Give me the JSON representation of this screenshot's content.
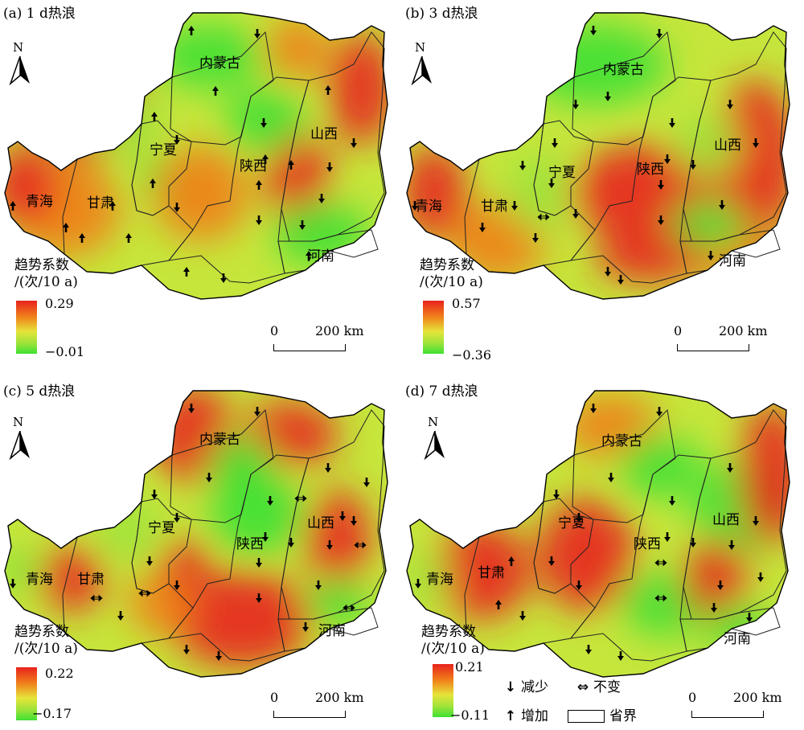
{
  "panels": [
    {
      "title": "(a) 1 d热浪",
      "legend_title_1": "趋势系数",
      "legend_title_2": "/(次/10 a)",
      "max": "0.29",
      "min": "−0.01",
      "blobs": [
        [
          "#e8221d",
          108,
          110,
          70,
          90
        ],
        [
          "#f07f1a",
          80,
          260,
          70,
          60
        ],
        [
          "#e8221d",
          30,
          230,
          40,
          50
        ],
        [
          "#3ee033",
          200,
          220,
          26,
          28
        ],
        [
          "#f07f1a",
          250,
          240,
          60,
          60
        ],
        [
          "#e8221d",
          370,
          220,
          40,
          60
        ],
        [
          "#3ee033",
          330,
          150,
          50,
          40
        ],
        [
          "#e8221d",
          450,
          110,
          40,
          70
        ],
        [
          "#f07f1a",
          370,
          60,
          40,
          40
        ],
        [
          "#3ee033",
          260,
          70,
          70,
          40
        ],
        [
          "#3ee033",
          400,
          290,
          60,
          40
        ],
        [
          "#9ee33a",
          150,
          150,
          50,
          40
        ]
      ],
      "arrows": [
        [
          "u",
          238,
          38
        ],
        [
          "d",
          320,
          42
        ],
        [
          "u",
          268,
          113
        ],
        [
          "u",
          408,
          112
        ],
        [
          "d",
          328,
          153
        ],
        [
          "u",
          192,
          145
        ],
        [
          "d",
          220,
          174
        ],
        [
          "d",
          440,
          178
        ],
        [
          "u",
          330,
          198
        ],
        [
          "u",
          362,
          205
        ],
        [
          "d",
          410,
          208
        ],
        [
          "u",
          190,
          228
        ],
        [
          "d",
          220,
          258
        ],
        [
          "u",
          140,
          256
        ],
        [
          "u",
          82,
          283
        ],
        [
          "u",
          102,
          296
        ],
        [
          "u",
          160,
          296
        ],
        [
          "u",
          16,
          256
        ],
        [
          "u",
          322,
          230
        ],
        [
          "d",
          322,
          274
        ],
        [
          "u",
          232,
          338
        ],
        [
          "d",
          278,
          346
        ],
        [
          "d",
          400,
          247
        ],
        [
          "d",
          376,
          280
        ],
        [
          "u",
          384,
          318
        ]
      ]
    },
    {
      "title": "(b) 3 d热浪",
      "legend_title_1": "趋势系数",
      "legend_title_2": "/(次/10 a)",
      "max": "0.57",
      "min": "−0.36",
      "blobs": [
        [
          "#e8221d",
          300,
          240,
          90,
          60
        ],
        [
          "#e8221d",
          440,
          200,
          50,
          100
        ],
        [
          "#e8221d",
          40,
          240,
          40,
          60
        ],
        [
          "#f07f1a",
          120,
          300,
          60,
          50
        ],
        [
          "#3ee033",
          240,
          80,
          90,
          50
        ],
        [
          "#3ee033",
          380,
          290,
          50,
          40
        ],
        [
          "#9ee33a",
          170,
          240,
          40,
          50
        ],
        [
          "#e8221d",
          310,
          320,
          70,
          30
        ],
        [
          "#f07f1a",
          430,
          330,
          60,
          30
        ],
        [
          "#9ee33a",
          380,
          180,
          40,
          40
        ]
      ],
      "arrows": [
        [
          "d",
          238,
          38
        ],
        [
          "d",
          320,
          42
        ],
        [
          "d",
          256,
          120
        ],
        [
          "d",
          408,
          130
        ],
        [
          "d",
          336,
          153
        ],
        [
          "d",
          190,
          178
        ],
        [
          "d",
          216,
          130
        ],
        [
          "d",
          440,
          178
        ],
        [
          "d",
          330,
          198
        ],
        [
          "d",
          362,
          205
        ],
        [
          "d",
          398,
          255
        ],
        [
          "d",
          186,
          228
        ],
        [
          "d",
          216,
          266
        ],
        [
          "b",
          176,
          270
        ],
        [
          "d",
          140,
          256
        ],
        [
          "d",
          100,
          283
        ],
        [
          "d",
          166,
          296
        ],
        [
          "d",
          16,
          256
        ],
        [
          "d",
          322,
          230
        ],
        [
          "d",
          322,
          274
        ],
        [
          "d",
          256,
          338
        ],
        [
          "d",
          272,
          348
        ],
        [
          "d",
          384,
          318
        ],
        [
          "d",
          150,
          206
        ]
      ]
    },
    {
      "title": "(c) 5 d热浪",
      "legend_title_1": "趋势系数",
      "legend_title_2": "/(次/10 a)",
      "max": "0.22",
      "min": "−0.17",
      "blobs": [
        [
          "#e8221d",
          240,
          70,
          50,
          60
        ],
        [
          "#e8221d",
          360,
          70,
          60,
          40
        ],
        [
          "#3ee033",
          320,
          170,
          60,
          50
        ],
        [
          "#e8221d",
          300,
          300,
          90,
          60
        ],
        [
          "#e8221d",
          420,
          200,
          40,
          60
        ],
        [
          "#3ee033",
          30,
          240,
          20,
          20
        ],
        [
          "#e8221d",
          90,
          250,
          40,
          40
        ],
        [
          "#3ee033",
          420,
          280,
          40,
          30
        ],
        [
          "#f07f1a",
          200,
          280,
          40,
          40
        ],
        [
          "#9ee33a",
          160,
          190,
          40,
          40
        ],
        [
          "#3ee033",
          300,
          110,
          40,
          40
        ],
        [
          "#e8221d",
          230,
          230,
          30,
          30
        ]
      ],
      "arrows": [
        [
          "d",
          238,
          38
        ],
        [
          "d",
          320,
          42
        ],
        [
          "d",
          260,
          124
        ],
        [
          "d",
          408,
          112
        ],
        [
          "d",
          336,
          153
        ],
        [
          "d",
          192,
          145
        ],
        [
          "d",
          220,
          174
        ],
        [
          "d",
          440,
          178
        ],
        [
          "b",
          374,
          150
        ],
        [
          "d",
          330,
          198
        ],
        [
          "d",
          362,
          205
        ],
        [
          "d",
          410,
          208
        ],
        [
          "d",
          186,
          228
        ],
        [
          "d",
          220,
          258
        ],
        [
          "b",
          120,
          274
        ],
        [
          "b",
          180,
          268
        ],
        [
          "d",
          150,
          296
        ],
        [
          "d",
          16,
          256
        ],
        [
          "d",
          322,
          230
        ],
        [
          "d",
          322,
          274
        ],
        [
          "d",
          232,
          338
        ],
        [
          "d",
          272,
          346
        ],
        [
          "d",
          396,
          258
        ],
        [
          "b",
          448,
          208
        ],
        [
          "b",
          434,
          286
        ],
        [
          "d",
          380,
          310
        ],
        [
          "d",
          456,
          130
        ],
        [
          "d",
          426,
          172
        ]
      ]
    },
    {
      "title": "(d) 7 d热浪",
      "legend_title_1": "趋势系数",
      "legend_title_2": "/(次/10 a)",
      "max": "0.21",
      "min": "−0.11",
      "blobs": [
        [
          "#e8221d",
          230,
          220,
          60,
          70
        ],
        [
          "#e8221d",
          100,
          240,
          60,
          60
        ],
        [
          "#f07f1a",
          260,
          60,
          60,
          40
        ],
        [
          "#3ee033",
          420,
          160,
          60,
          60
        ],
        [
          "#e8221d",
          460,
          120,
          40,
          90
        ],
        [
          "#3ee033",
          320,
          110,
          50,
          40
        ],
        [
          "#3ee033",
          330,
          280,
          60,
          40
        ],
        [
          "#9ee33a",
          30,
          250,
          30,
          30
        ],
        [
          "#e8221d",
          390,
          250,
          40,
          50
        ],
        [
          "#3ee033",
          420,
          310,
          40,
          30
        ]
      ],
      "arrows": [
        [
          "d",
          238,
          38
        ],
        [
          "d",
          320,
          42
        ],
        [
          "d",
          260,
          124
        ],
        [
          "d",
          408,
          112
        ],
        [
          "d",
          336,
          153
        ],
        [
          "d",
          192,
          145
        ],
        [
          "d",
          220,
          174
        ],
        [
          "d",
          440,
          178
        ],
        [
          "d",
          330,
          198
        ],
        [
          "d",
          362,
          205
        ],
        [
          "d",
          410,
          208
        ],
        [
          "d",
          186,
          228
        ],
        [
          "d",
          220,
          258
        ],
        [
          "u",
          136,
          228
        ],
        [
          "u",
          120,
          282
        ],
        [
          "d",
          150,
          296
        ],
        [
          "d",
          20,
          256
        ],
        [
          "b",
          322,
          230
        ],
        [
          "b",
          322,
          274
        ],
        [
          "d",
          232,
          338
        ],
        [
          "d",
          272,
          346
        ],
        [
          "d",
          396,
          258
        ],
        [
          "d",
          388,
          286
        ],
        [
          "d",
          446,
          248
        ],
        [
          "d",
          432,
          298
        ]
      ]
    }
  ],
  "province_labels": {
    "a": [
      [
        "内蒙古",
        248,
        84
      ],
      [
        "山西",
        386,
        172
      ],
      [
        "陕西",
        298,
        212
      ],
      [
        "宁夏",
        186,
        192
      ],
      [
        "青海",
        32,
        256
      ],
      [
        "甘肃",
        108,
        258
      ],
      [
        "河南",
        382,
        324
      ]
    ],
    "b": [
      [
        "内蒙古",
        250,
        92
      ],
      [
        "山西",
        388,
        186
      ],
      [
        "陕西",
        292,
        216
      ],
      [
        "宁夏",
        182,
        220
      ],
      [
        "青海",
        16,
        262
      ],
      [
        "甘肃",
        98,
        262
      ],
      [
        "河南",
        394,
        330
      ]
    ],
    "c": [
      [
        "内蒙古",
        248,
        82
      ],
      [
        "山西",
        382,
        186
      ],
      [
        "陕西",
        294,
        212
      ],
      [
        "宁夏",
        184,
        192
      ],
      [
        "青海",
        32,
        256
      ],
      [
        "甘肃",
        96,
        256
      ],
      [
        "河南",
        396,
        320
      ]
    ],
    "d": [
      [
        "内蒙古",
        248,
        84
      ],
      [
        "山西",
        386,
        182
      ],
      [
        "陕西",
        288,
        212
      ],
      [
        "宁夏",
        194,
        186
      ],
      [
        "青海",
        30,
        256
      ],
      [
        "甘肃",
        94,
        248
      ],
      [
        "河南",
        400,
        330
      ]
    ]
  },
  "scale": {
    "zero": "0",
    "dist": "200 km"
  },
  "north_label": "N",
  "shared_legend": {
    "decrease": "减少",
    "nochange": "不变",
    "increase": "增加",
    "border": "省界"
  },
  "colors": {
    "high": "#e8221d",
    "mid": "#e6e43a",
    "low": "#3ee033"
  }
}
